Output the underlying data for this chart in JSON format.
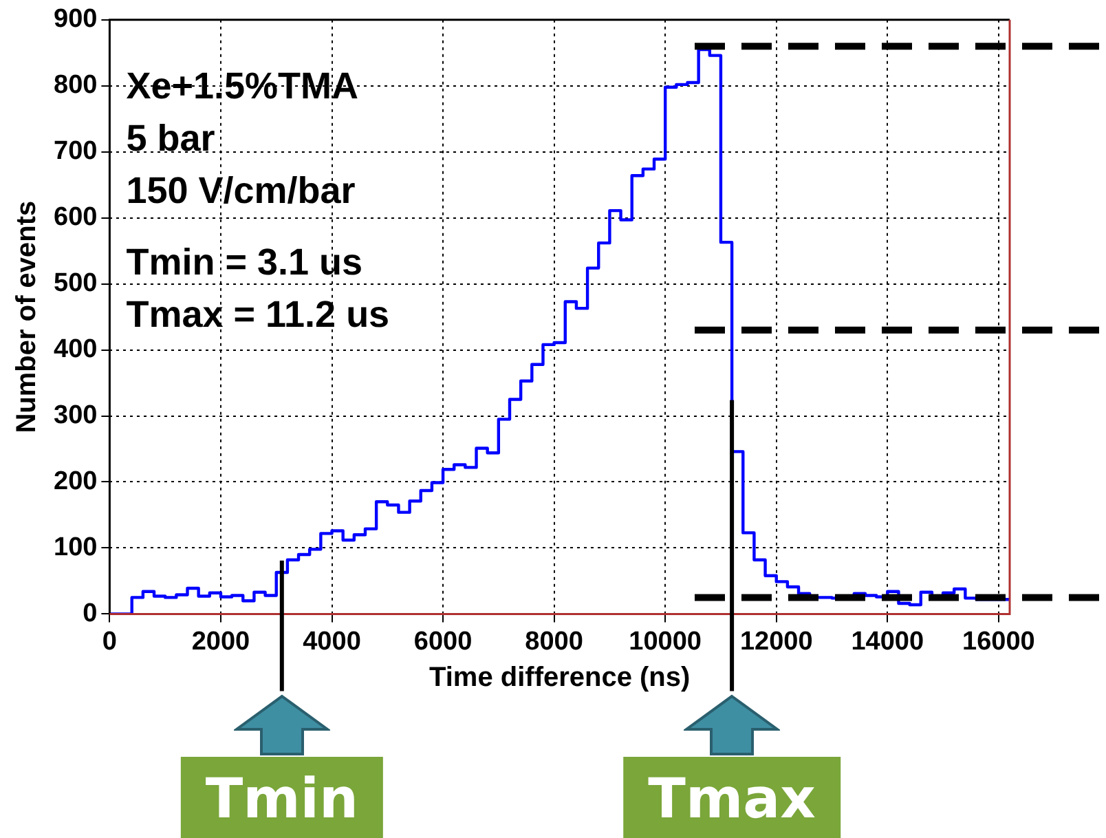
{
  "chart_data": {
    "type": "histogram",
    "xlabel": "Time difference (ns)",
    "ylabel": "Number of events",
    "bins": [
      0,
      200,
      400,
      600,
      800,
      1000,
      1200,
      1400,
      1600,
      1800,
      2000,
      2200,
      2400,
      2600,
      2800,
      3000,
      3200,
      3400,
      3600,
      3800,
      4000,
      4200,
      4400,
      4600,
      4800,
      5000,
      5200,
      5400,
      5600,
      5800,
      6000,
      6200,
      6400,
      6600,
      6800,
      7000,
      7200,
      7400,
      7600,
      7800,
      8000,
      8200,
      8400,
      8600,
      8800,
      9000,
      9200,
      9400,
      9600,
      9800,
      10000,
      10200,
      10400,
      10600,
      10800,
      11000,
      11200,
      11400,
      11600,
      11800,
      12000,
      12200,
      12400,
      12600,
      12800,
      13000,
      13200,
      13400,
      13600,
      13800,
      14000,
      14200,
      14400,
      14600,
      14800,
      15000,
      15200,
      15400,
      15600,
      15800,
      16000,
      16200
    ],
    "values": [
      0,
      0,
      25,
      34,
      27,
      25,
      29,
      39,
      27,
      32,
      26,
      28,
      20,
      33,
      28,
      63,
      82,
      90,
      98,
      122,
      126,
      112,
      120,
      129,
      170,
      165,
      154,
      171,
      187,
      199,
      219,
      226,
      222,
      251,
      244,
      295,
      325,
      353,
      378,
      408,
      411,
      473,
      463,
      524,
      562,
      611,
      597,
      664,
      674,
      689,
      798,
      802,
      805,
      855,
      846,
      563,
      246,
      123,
      82,
      58,
      49,
      41,
      31,
      25,
      25,
      24,
      26,
      31,
      28,
      26,
      34,
      16,
      14,
      33,
      24,
      32,
      38,
      24,
      22,
      22,
      22
    ],
    "color": "#0000ff",
    "xlim": [
      0,
      16200
    ],
    "xticks": [
      0,
      2000,
      4000,
      6000,
      8000,
      10000,
      12000,
      14000,
      16000
    ],
    "ylim": [
      0,
      900
    ],
    "yticks": [
      0,
      100,
      200,
      300,
      400,
      500,
      600,
      700,
      800,
      900
    ],
    "grid": true,
    "legend": false,
    "ref_lines": [
      {
        "axis": "y",
        "value": 860,
        "color": "#000000",
        "line_style": "dashed"
      },
      {
        "axis": "y",
        "value": 430,
        "color": "#000000",
        "line_style": "dashed"
      },
      {
        "axis": "y",
        "value": 25,
        "color": "#000000",
        "line_style": "dashed"
      },
      {
        "axis": "x",
        "value": 3100,
        "label": "Tmin",
        "color": "#000000",
        "line_style": "solid"
      },
      {
        "axis": "x",
        "value": 11200,
        "label": "Tmax",
        "color": "#000000",
        "line_style": "solid"
      }
    ],
    "annotations": [
      "Xe+1.5%TMA",
      "5 bar",
      "150 V/cm/bar",
      "Tmin = 3.1 us",
      "Tmax = 11.2 us"
    ]
  }
}
